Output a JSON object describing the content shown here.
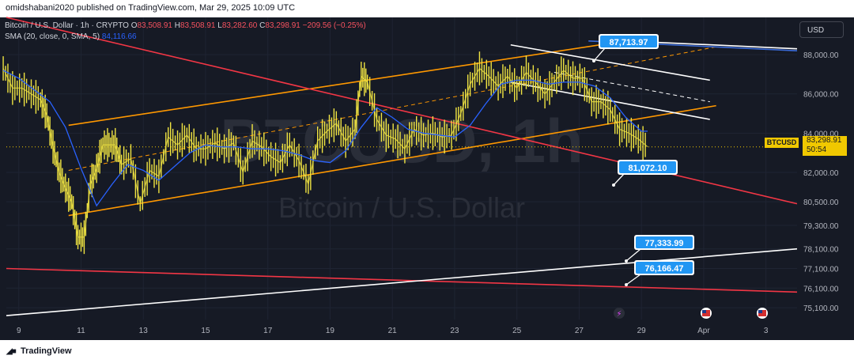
{
  "header": {
    "publisher_text": "omidshabani2020 published on TradingView.com, Mar 29, 2025 10:09 UTC"
  },
  "legend": {
    "symbol_line": "Bitcoin / U.S. Dollar · 1h · CRYPTO",
    "open_label": "O",
    "open": "83,508.91",
    "high_label": "H",
    "high": "83,508.91",
    "low_label": "L",
    "low": "83,282.60",
    "close_label": "C",
    "close": "83,298.91",
    "change": "−209.56 (−0.25%)",
    "sma_label": "SMA (20, close, 0, SMA, 5)",
    "sma_value": "84,116.66"
  },
  "toolbar": {
    "currency_button": "USD"
  },
  "watermark": {
    "symbol": "BTCUSD, 1h",
    "name": "Bitcoin / U.S. Dollar"
  },
  "price_axis": {
    "ticks": [
      {
        "v": 88000,
        "label": "88,000.00"
      },
      {
        "v": 86000,
        "label": "86,000.00"
      },
      {
        "v": 84000,
        "label": "84,000.00"
      },
      {
        "v": 82000,
        "label": "82,000.00"
      },
      {
        "v": 80500,
        "label": "80,500.00"
      },
      {
        "v": 79300,
        "label": "79,300.00"
      },
      {
        "v": 78100,
        "label": "78,100.00"
      },
      {
        "v": 77100,
        "label": "77,100.00"
      },
      {
        "v": 76100,
        "label": "76,100.00"
      },
      {
        "v": 75100,
        "label": "75,100.00"
      }
    ],
    "symbol_badge": "BTCUSD",
    "current_price": "83,298.91",
    "countdown": "50:54"
  },
  "time_axis": {
    "ticks": [
      "9",
      "11",
      "13",
      "15",
      "17",
      "19",
      "21",
      "23",
      "25",
      "27",
      "29",
      "Apr",
      "3"
    ]
  },
  "colors": {
    "background": "#161a25",
    "candle": "#f0e442",
    "sma": "#2962ff",
    "channel": "#ff9800",
    "red_line": "#f23645",
    "white_line": "#ffffff",
    "blue_line": "#3a6bd9",
    "callout": "#2196f3"
  },
  "chart_data": {
    "type": "line",
    "title": "Bitcoin / U.S. Dollar · 1h · CRYPTO",
    "x_ticks": [
      "9",
      "11",
      "13",
      "15",
      "17",
      "19",
      "21",
      "23",
      "25",
      "27",
      "29",
      "Apr",
      "3"
    ],
    "series": [
      {
        "name": "Bitcoin / U.S. Dollar",
        "x": [
          8.5,
          8.8,
          9.1,
          9.4,
          9.7,
          9.9,
          10.1,
          10.3,
          10.5,
          10.7,
          10.9,
          11.1,
          11.3,
          11.5,
          11.7,
          11.9,
          12.1,
          12.3,
          12.6,
          12.9,
          13.2,
          13.5,
          13.8,
          14.1,
          14.4,
          14.7,
          15.0,
          15.3,
          15.6,
          15.9,
          16.2,
          16.5,
          16.8,
          17.1,
          17.4,
          17.7,
          18.0,
          18.3,
          18.6,
          18.9,
          19.2,
          19.5,
          19.8,
          20.0,
          20.2,
          20.5,
          20.8,
          21.1,
          21.4,
          21.7,
          22.0,
          22.3,
          22.6,
          22.9,
          23.2,
          23.5,
          23.8,
          24.1,
          24.4,
          24.7,
          25.0,
          25.3,
          25.6,
          25.9,
          26.2,
          26.5,
          26.8,
          27.1,
          27.4,
          27.7,
          28.0,
          28.3,
          28.6,
          28.9,
          29.2
        ],
        "values": [
          87300,
          86300,
          86300,
          86000,
          85700,
          84900,
          83300,
          82000,
          81200,
          80500,
          78700,
          78700,
          81400,
          82200,
          83400,
          83400,
          83400,
          82400,
          82700,
          80400,
          82100,
          81800,
          83800,
          83400,
          83900,
          83200,
          83200,
          83500,
          83200,
          83500,
          82000,
          83600,
          83300,
          82800,
          82500,
          83400,
          82600,
          81400,
          83600,
          84100,
          84500,
          83600,
          84200,
          86900,
          86600,
          84700,
          83900,
          83700,
          83200,
          84200,
          83900,
          84000,
          83800,
          83900,
          85000,
          86500,
          87300,
          86900,
          86400,
          86900,
          86300,
          87100,
          86600,
          86000,
          86600,
          87200,
          86800,
          86800,
          85600,
          85600,
          85200,
          84200,
          84000,
          83700,
          83300
        ]
      },
      {
        "name": "SMA (20, close, 0, SMA, 5)",
        "x": [
          8.5,
          9.0,
          9.5,
          10.0,
          10.5,
          11.0,
          11.5,
          12.0,
          12.5,
          13.0,
          13.5,
          14.0,
          14.5,
          15.0,
          15.5,
          16.0,
          16.5,
          17.0,
          17.5,
          18.0,
          18.5,
          19.0,
          19.5,
          20.0,
          20.5,
          21.0,
          21.5,
          22.0,
          22.5,
          23.0,
          23.5,
          24.0,
          24.5,
          25.0,
          25.5,
          26.0,
          26.5,
          27.0,
          27.5,
          28.0,
          28.5,
          29.0,
          29.2
        ],
        "values": [
          87200,
          86800,
          86200,
          85600,
          84300,
          82200,
          80300,
          81400,
          82400,
          82100,
          81600,
          82300,
          83000,
          83400,
          83300,
          83300,
          83200,
          83200,
          83100,
          82900,
          82600,
          82500,
          83100,
          84300,
          85300,
          84800,
          84200,
          84000,
          83900,
          83800,
          84400,
          85500,
          86500,
          86700,
          86700,
          86500,
          86600,
          86600,
          86400,
          85800,
          84800,
          84100,
          84100
        ]
      }
    ],
    "trendlines": [
      {
        "name": "channel upper",
        "color": "#ff9800",
        "points": [
          [
            10.6,
            84400
          ],
          [
            28.5,
            88700
          ]
        ]
      },
      {
        "name": "channel lower",
        "color": "#ff9800",
        "points": [
          [
            10.6,
            79800
          ],
          [
            31.4,
            85400
          ]
        ]
      },
      {
        "name": "channel middle",
        "color": "#ff9800",
        "dashed": true,
        "points": [
          [
            10.6,
            82100
          ],
          [
            31.4,
            88400
          ]
        ]
      },
      {
        "name": "descending channel upper",
        "color": "#ffffff",
        "points": [
          [
            24.8,
            88500
          ],
          [
            31.2,
            86700
          ]
        ]
      },
      {
        "name": "descending channel lower",
        "color": "#ffffff",
        "points": [
          [
            24.8,
            86600
          ],
          [
            31.2,
            84700
          ]
        ]
      },
      {
        "name": "descending channel middle",
        "color": "#ffffff",
        "dashed": true,
        "points": [
          [
            26.2,
            87100
          ],
          [
            31.2,
            85600
          ]
        ]
      },
      {
        "name": "red descending line",
        "color": "#f23645",
        "points": [
          [
            8.6,
            89900
          ],
          [
            34.0,
            80400
          ]
        ]
      },
      {
        "name": "red lower line",
        "color": "#f23645",
        "points": [
          [
            8.6,
            77100
          ],
          [
            34.0,
            75900
          ]
        ]
      },
      {
        "name": "white ascending line",
        "color": "#ffffff",
        "points": [
          [
            8.6,
            74700
          ],
          [
            34.0,
            78100
          ]
        ]
      },
      {
        "name": "white upper line",
        "color": "#ffffff",
        "points": [
          [
            28.5,
            88700
          ],
          [
            34.0,
            88300
          ]
        ]
      },
      {
        "name": "blue line",
        "color": "#3a6bd9",
        "points": [
          [
            27.3,
            88700
          ],
          [
            34.0,
            88200
          ]
        ]
      }
    ],
    "annotations": [
      "87,713.97",
      "81,072.10",
      "77,333.99",
      "76,166.47"
    ],
    "ylim": [
      74500,
      89900
    ],
    "xlim": [
      8.6,
      34.0
    ],
    "grid": true,
    "legend": "top-left"
  }
}
